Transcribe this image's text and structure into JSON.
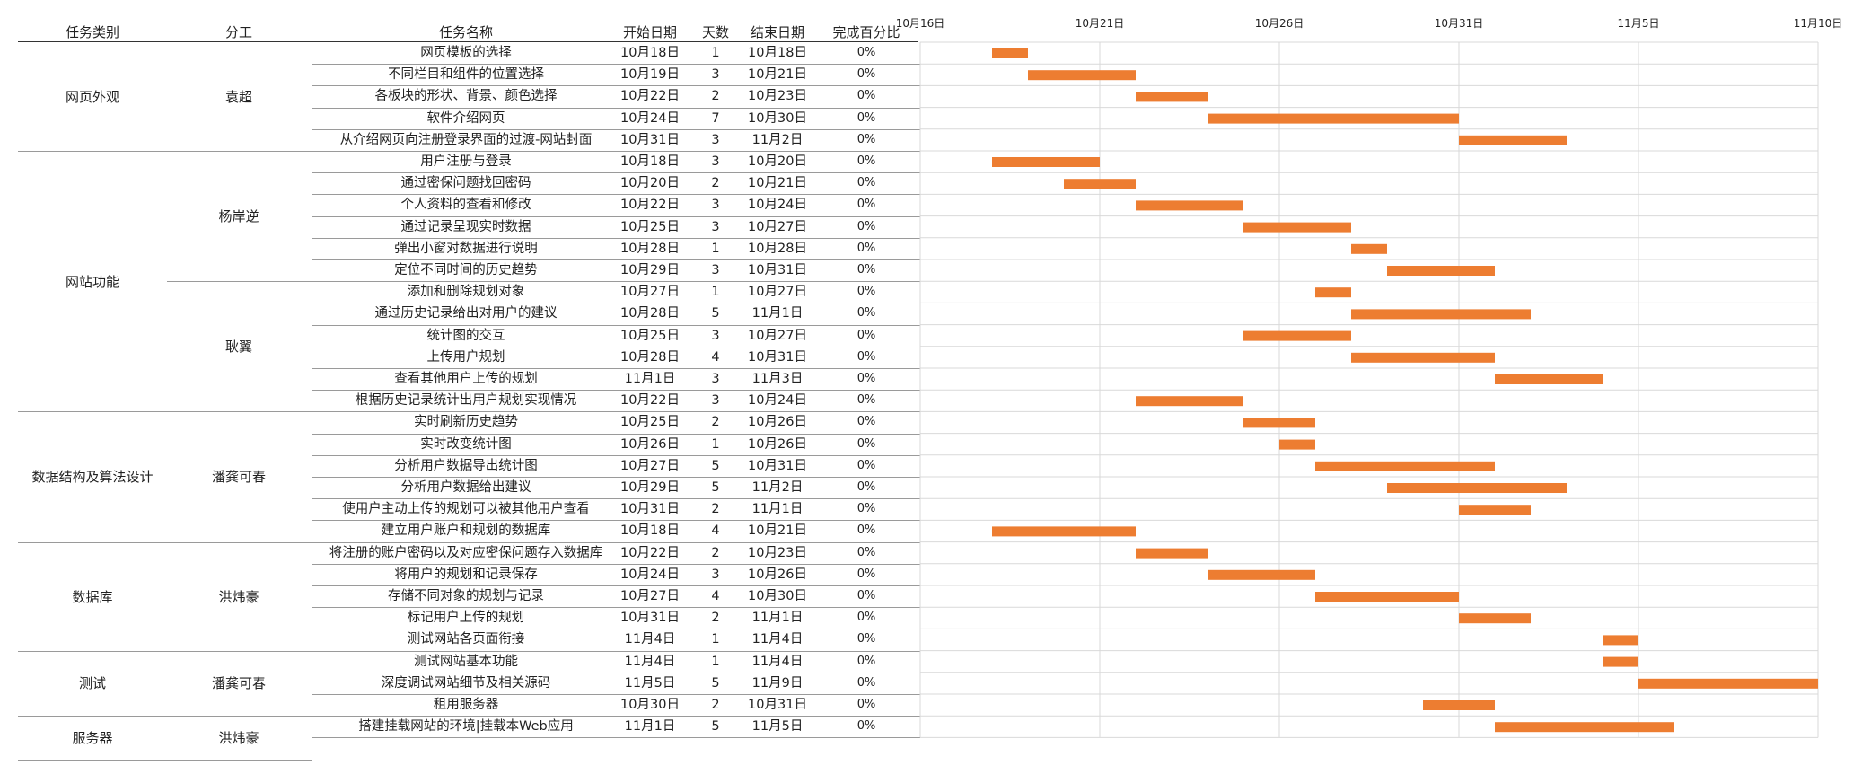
{
  "colors": {
    "bar": "#ED7D31",
    "grid": "#d9d9d9",
    "axis_text": "#222222"
  },
  "headers": {
    "category": "任务类别",
    "assignee": "分工",
    "task_name": "任务名称",
    "start": "开始日期",
    "days": "天数",
    "end": "结束日期",
    "pct": "完成百分比"
  },
  "chart_data": {
    "type": "bar",
    "orientation": "horizontal-gantt",
    "x_ticks": [
      "10月16日",
      "10月21日",
      "10月26日",
      "10月31日",
      "11月5日",
      "11月10日"
    ],
    "xlim": [
      "10-16",
      "11-10"
    ],
    "grid": true,
    "groups": [
      {
        "category": "网页外观",
        "assignee_blocks": [
          {
            "name": "袁超",
            "rows": 5
          }
        ],
        "rows": 5
      },
      {
        "category": "网站功能",
        "assignee_blocks": [
          {
            "name": "杨岸逆",
            "rows": 6
          },
          {
            "name": "耿翼",
            "rows": 6
          }
        ],
        "rows": 12
      },
      {
        "category": "数据结构及算法设计",
        "assignee_blocks": [
          {
            "name": "潘龚可春",
            "rows": 6
          }
        ],
        "rows": 6
      },
      {
        "category": "数据库",
        "assignee_blocks": [
          {
            "name": "洪炜豪",
            "rows": 5
          }
        ],
        "rows": 5
      },
      {
        "category": "测试",
        "assignee_blocks": [
          {
            "name": "潘龚可春",
            "rows": 3
          }
        ],
        "rows": 3
      },
      {
        "category": "服务器",
        "assignee_blocks": [
          {
            "name": "洪炜豪",
            "rows": 2
          }
        ],
        "rows": 2
      }
    ],
    "tasks": [
      {
        "name": "网页模板的选择",
        "start": "10月18日",
        "days": "1",
        "end": "10月18日",
        "pct": "0%",
        "start_date": "10-18",
        "duration": 1
      },
      {
        "name": "不同栏目和组件的位置选择",
        "start": "10月19日",
        "days": "3",
        "end": "10月21日",
        "pct": "0%",
        "start_date": "10-19",
        "duration": 3
      },
      {
        "name": "各板块的形状、背景、颜色选择",
        "start": "10月22日",
        "days": "2",
        "end": "10月23日",
        "pct": "0%",
        "start_date": "10-22",
        "duration": 2
      },
      {
        "name": "软件介绍网页",
        "start": "10月24日",
        "days": "7",
        "end": "10月30日",
        "pct": "0%",
        "start_date": "10-24",
        "duration": 7
      },
      {
        "name": "从介绍网页向注册登录界面的过渡-网站封面",
        "start": "10月31日",
        "days": "3",
        "end": "11月2日",
        "pct": "0%",
        "start_date": "10-31",
        "duration": 3
      },
      {
        "name": "用户注册与登录",
        "start": "10月18日",
        "days": "3",
        "end": "10月20日",
        "pct": "0%",
        "start_date": "10-18",
        "duration": 3
      },
      {
        "name": "通过密保问题找回密码",
        "start": "10月20日",
        "days": "2",
        "end": "10月21日",
        "pct": "0%",
        "start_date": "10-20",
        "duration": 2
      },
      {
        "name": "个人资料的查看和修改",
        "start": "10月22日",
        "days": "3",
        "end": "10月24日",
        "pct": "0%",
        "start_date": "10-22",
        "duration": 3
      },
      {
        "name": "通过记录呈现实时数据",
        "start": "10月25日",
        "days": "3",
        "end": "10月27日",
        "pct": "0%",
        "start_date": "10-25",
        "duration": 3
      },
      {
        "name": "弹出小窗对数据进行说明",
        "start": "10月28日",
        "days": "1",
        "end": "10月28日",
        "pct": "0%",
        "start_date": "10-28",
        "duration": 1
      },
      {
        "name": "定位不同时间的历史趋势",
        "start": "10月29日",
        "days": "3",
        "end": "10月31日",
        "pct": "0%",
        "start_date": "10-29",
        "duration": 3
      },
      {
        "name": "添加和删除规划对象",
        "start": "10月27日",
        "days": "1",
        "end": "10月27日",
        "pct": "0%",
        "start_date": "10-27",
        "duration": 1
      },
      {
        "name": "通过历史记录给出对用户的建议",
        "start": "10月28日",
        "days": "5",
        "end": "11月1日",
        "pct": "0%",
        "start_date": "10-28",
        "duration": 5
      },
      {
        "name": "统计图的交互",
        "start": "10月25日",
        "days": "3",
        "end": "10月27日",
        "pct": "0%",
        "start_date": "10-25",
        "duration": 3
      },
      {
        "name": "上传用户规划",
        "start": "10月28日",
        "days": "4",
        "end": "10月31日",
        "pct": "0%",
        "start_date": "10-28",
        "duration": 4
      },
      {
        "name": "查看其他用户上传的规划",
        "start": "11月1日",
        "days": "3",
        "end": "11月3日",
        "pct": "0%",
        "start_date": "11-01",
        "duration": 3
      },
      {
        "name": "根据历史记录统计出用户规划实现情况",
        "start": "10月22日",
        "days": "3",
        "end": "10月24日",
        "pct": "0%",
        "start_date": "10-22",
        "duration": 3
      },
      {
        "name": "实时刷新历史趋势",
        "start": "10月25日",
        "days": "2",
        "end": "10月26日",
        "pct": "0%",
        "start_date": "10-25",
        "duration": 2
      },
      {
        "name": "实时改变统计图",
        "start": "10月26日",
        "days": "1",
        "end": "10月26日",
        "pct": "0%",
        "start_date": "10-26",
        "duration": 1
      },
      {
        "name": "分析用户数据导出统计图",
        "start": "10月27日",
        "days": "5",
        "end": "10月31日",
        "pct": "0%",
        "start_date": "10-27",
        "duration": 5
      },
      {
        "name": "分析用户数据给出建议",
        "start": "10月29日",
        "days": "5",
        "end": "11月2日",
        "pct": "0%",
        "start_date": "10-29",
        "duration": 5
      },
      {
        "name": "使用户主动上传的规划可以被其他用户查看",
        "start": "10月31日",
        "days": "2",
        "end": "11月1日",
        "pct": "0%",
        "start_date": "10-31",
        "duration": 2
      },
      {
        "name": "建立用户账户和规划的数据库",
        "start": "10月18日",
        "days": "4",
        "end": "10月21日",
        "pct": "0%",
        "start_date": "10-18",
        "duration": 4
      },
      {
        "name": "将注册的账户密码以及对应密保问题存入数据库",
        "start": "10月22日",
        "days": "2",
        "end": "10月23日",
        "pct": "0%",
        "start_date": "10-22",
        "duration": 2
      },
      {
        "name": "将用户的规划和记录保存",
        "start": "10月24日",
        "days": "3",
        "end": "10月26日",
        "pct": "0%",
        "start_date": "10-24",
        "duration": 3
      },
      {
        "name": "存储不同对象的规划与记录",
        "start": "10月27日",
        "days": "4",
        "end": "10月30日",
        "pct": "0%",
        "start_date": "10-27",
        "duration": 4
      },
      {
        "name": "标记用户上传的规划",
        "start": "10月31日",
        "days": "2",
        "end": "11月1日",
        "pct": "0%",
        "start_date": "10-31",
        "duration": 2
      },
      {
        "name": "测试网站各页面衔接",
        "start": "11月4日",
        "days": "1",
        "end": "11月4日",
        "pct": "0%",
        "start_date": "11-04",
        "duration": 1
      },
      {
        "name": "测试网站基本功能",
        "start": "11月4日",
        "days": "1",
        "end": "11月4日",
        "pct": "0%",
        "start_date": "11-04",
        "duration": 1
      },
      {
        "name": "深度调试网站细节及相关源码",
        "start": "11月5日",
        "days": "5",
        "end": "11月9日",
        "pct": "0%",
        "start_date": "11-05",
        "duration": 5
      },
      {
        "name": "租用服务器",
        "start": "10月30日",
        "days": "2",
        "end": "10月31日",
        "pct": "0%",
        "start_date": "10-30",
        "duration": 2
      },
      {
        "name": "搭建挂载网站的环境|挂载本Web应用",
        "start": "11月1日",
        "days": "5",
        "end": "11月5日",
        "pct": "0%",
        "start_date": "11-01",
        "duration": 5
      }
    ]
  }
}
